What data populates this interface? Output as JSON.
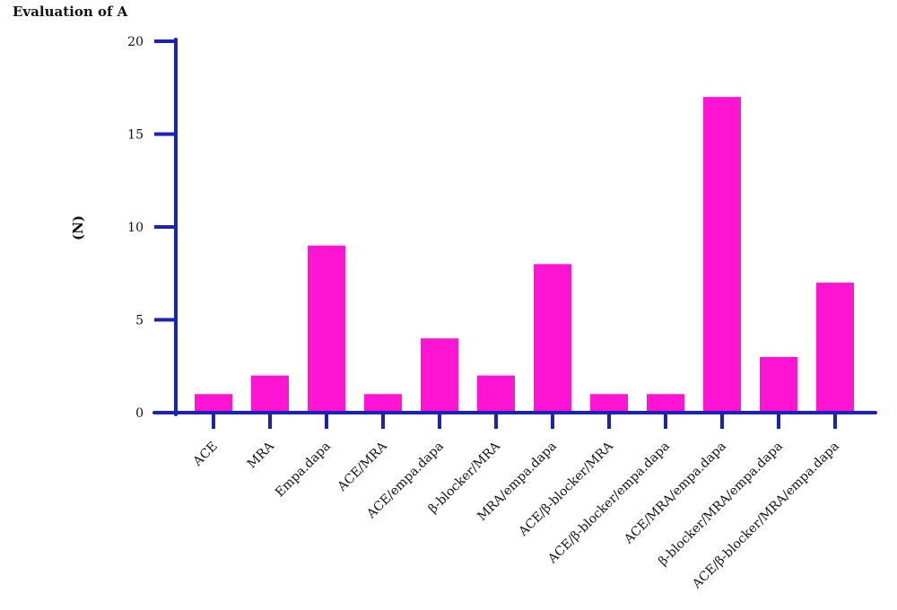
{
  "chart_data": {
    "type": "bar",
    "title": "Evaluation of A",
    "xlabel": "",
    "ylabel": "(N)",
    "categories": [
      "ACE",
      "MRA",
      "Empa.dapa",
      "ACE/MRA",
      "ACE/empa.dapa",
      "β-blocker/MRA",
      "MRA/empa.dapa",
      "ACE/β-blocker/MRA",
      "ACE/β-blocker/empa.dapa",
      "ACE/MRA/empa.dapa",
      "β-blocker/MRA/empa.dapa",
      "ACE/β-blocker/MRA/empa.dapa"
    ],
    "values": [
      1,
      2,
      9,
      1,
      4,
      2,
      8,
      1,
      1,
      17,
      3,
      7
    ],
    "ylim": [
      0,
      20
    ],
    "yticks": [
      0,
      5,
      10,
      15,
      20
    ],
    "grid": false,
    "legend": "none",
    "colors": {
      "bar": "#ff14d4",
      "axis": "#1c22b4",
      "text": "#111111"
    }
  }
}
